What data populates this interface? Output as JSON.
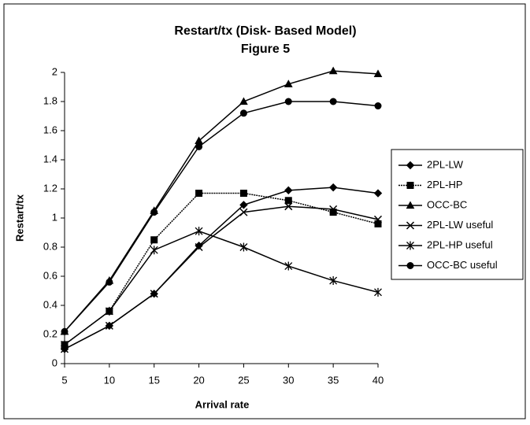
{
  "chart_data": {
    "type": "line",
    "title": "Restart/tx (Disk- Based Model)",
    "subtitle": "Figure 5",
    "x_label": "Arrival rate",
    "y_label": "Restart/tx",
    "x": [
      5,
      10,
      15,
      20,
      25,
      30,
      35,
      40
    ],
    "xlim": [
      5,
      40
    ],
    "xticks": [
      5,
      10,
      15,
      20,
      25,
      30,
      35,
      40
    ],
    "ylim": [
      0,
      2
    ],
    "yticks": [
      0,
      0.2,
      0.4,
      0.6,
      0.8,
      1,
      1.2,
      1.4,
      1.6,
      1.8,
      2
    ],
    "legend": "right",
    "series": [
      {
        "name": "2PL-LW",
        "color": "#000000",
        "marker": "diamond",
        "values": [
          0.1,
          0.26,
          0.48,
          0.81,
          1.09,
          1.19,
          1.21,
          1.17
        ]
      },
      {
        "name": "2PL-HP",
        "color": "#000000",
        "marker": "square",
        "dash": true,
        "values": [
          0.13,
          0.36,
          0.85,
          1.17,
          1.17,
          1.12,
          1.04,
          0.96
        ]
      },
      {
        "name": "OCC-BC",
        "color": "#000000",
        "marker": "triangle",
        "values": [
          0.22,
          0.57,
          1.05,
          1.53,
          1.8,
          1.92,
          2.01,
          1.99
        ]
      },
      {
        "name": "2PL-LW useful",
        "color": "#000000",
        "marker": "x",
        "values": [
          0.1,
          0.26,
          0.48,
          0.8,
          1.04,
          1.08,
          1.06,
          0.99
        ]
      },
      {
        "name": "2PL-HP useful",
        "color": "#000000",
        "marker": "star",
        "values": [
          0.13,
          0.36,
          0.78,
          0.91,
          0.8,
          0.67,
          0.57,
          0.49
        ]
      },
      {
        "name": "OCC-BC useful",
        "color": "#000000",
        "marker": "circle",
        "values": [
          0.22,
          0.56,
          1.04,
          1.49,
          1.72,
          1.8,
          1.8,
          1.77
        ]
      }
    ]
  }
}
